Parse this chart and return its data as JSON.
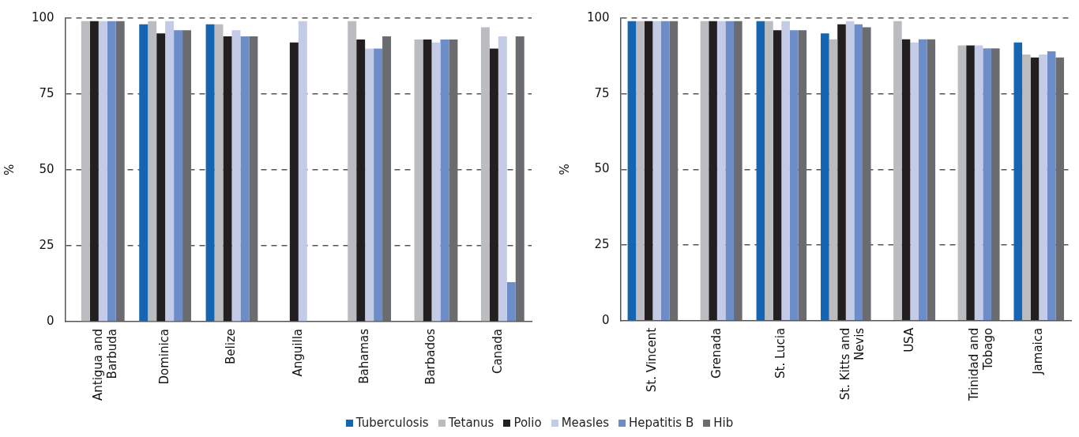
{
  "chart_data": [
    {
      "type": "bar",
      "ylabel": "%",
      "categories": [
        "Antigua and Barbuda",
        "Dominica",
        "Belize",
        "Anguilla",
        "Bahamas",
        "Barbados",
        "Canada"
      ],
      "ylim": [
        0,
        100
      ],
      "yticks": [
        0,
        25,
        50,
        75,
        100
      ],
      "grid": "y",
      "legend": "bottom",
      "series": [
        {
          "name": "Tuberculosis",
          "color": "#1565b0",
          "values": [
            null,
            98,
            98,
            null,
            null,
            null,
            null
          ]
        },
        {
          "name": "Tetanus",
          "color": "#bbbcc0",
          "values": [
            99,
            99,
            98,
            null,
            99,
            93,
            97
          ]
        },
        {
          "name": "Polio",
          "color": "#231f20",
          "values": [
            99,
            95,
            94,
            92,
            93,
            93,
            90
          ]
        },
        {
          "name": "Measles",
          "color": "#c3cbe6",
          "values": [
            99,
            99,
            96,
            99,
            90,
            92,
            94
          ]
        },
        {
          "name": "Hepatitis B",
          "color": "#6c8dc8",
          "values": [
            99,
            96,
            94,
            null,
            90,
            93,
            13
          ]
        },
        {
          "name": "Hib",
          "color": "#6b6c70",
          "values": [
            99,
            96,
            94,
            null,
            94,
            93,
            94
          ]
        }
      ]
    },
    {
      "type": "bar",
      "ylabel": "%",
      "categories": [
        "St. Vincent",
        "Grenada",
        "St. Lucia",
        "St. Kitts and Nevis",
        "USA",
        "Trinidad and Tobago",
        "Jamaica"
      ],
      "ylim": [
        0,
        100
      ],
      "yticks": [
        0,
        25,
        50,
        75,
        100
      ],
      "grid": "y",
      "series": [
        {
          "color": "#1565b0",
          "values": [
            99,
            null,
            99,
            95,
            null,
            null,
            92
          ]
        },
        {
          "color": "#bbbcc0",
          "values": [
            99,
            99,
            99,
            93,
            99,
            91,
            88
          ]
        },
        {
          "color": "#231f20",
          "values": [
            99,
            99,
            96,
            98,
            93,
            91,
            87
          ]
        },
        {
          "color": "#c3cbe6",
          "values": [
            99,
            99,
            99,
            99,
            92,
            91,
            88
          ]
        },
        {
          "color": "#6c8dc8",
          "values": [
            99,
            99,
            96,
            98,
            93,
            90,
            89
          ]
        },
        {
          "color": "#6b6c70",
          "values": [
            99,
            99,
            96,
            97,
            93,
            90,
            87
          ]
        }
      ]
    }
  ]
}
